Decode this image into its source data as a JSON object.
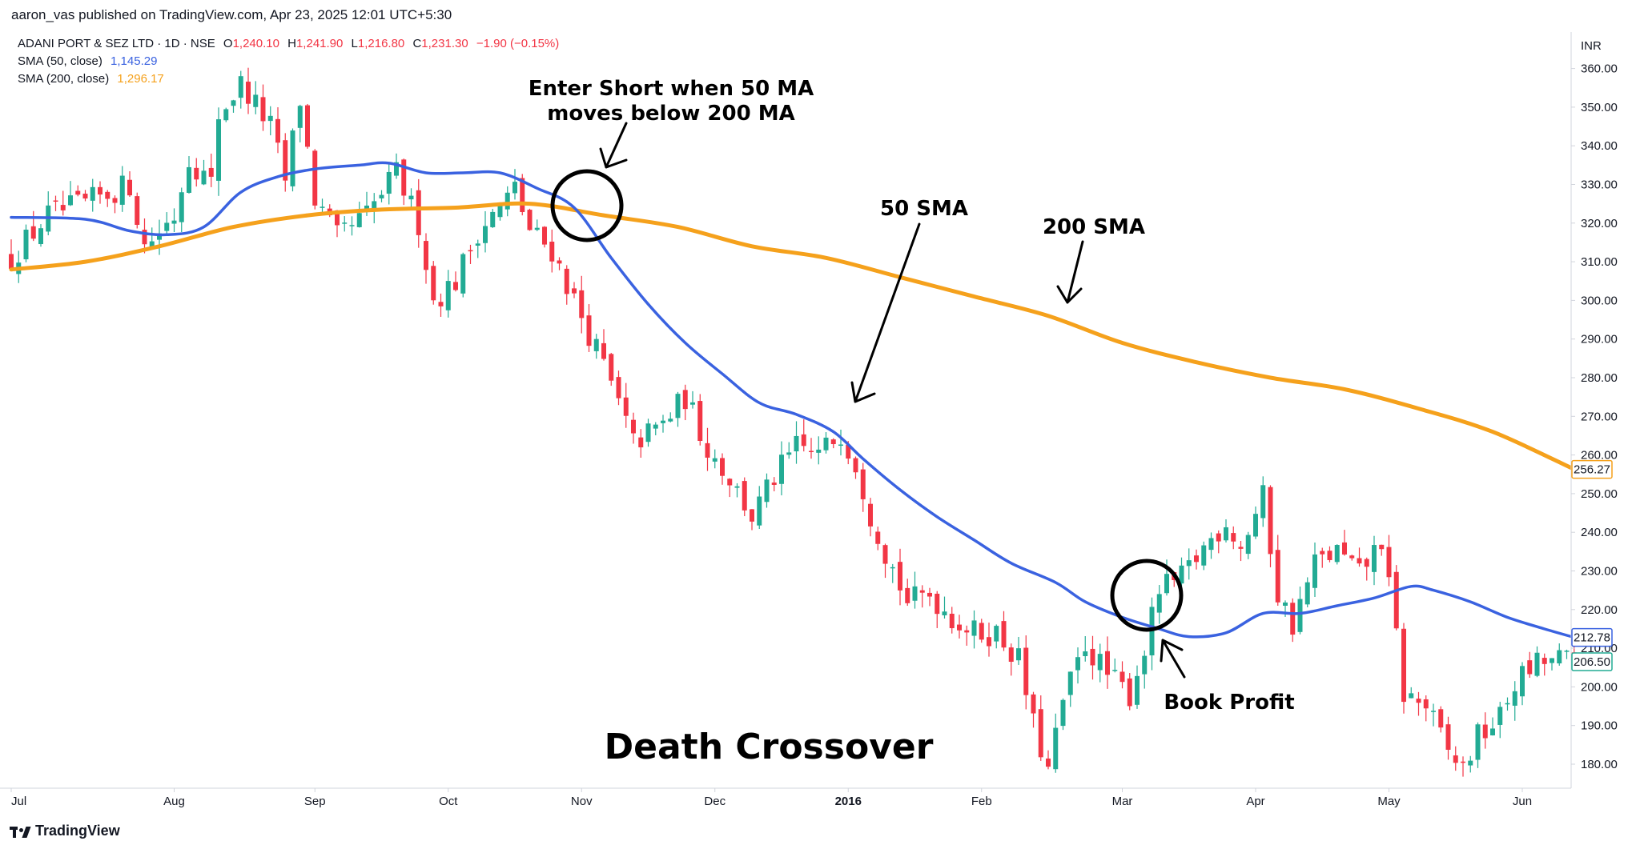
{
  "header": {
    "published": "aaron_vas published on TradingView.com, Apr 23, 2025 12:01 UTC+5:30",
    "symbol": "ADANI PORT & SEZ LTD · 1D · NSE",
    "ohlc": {
      "o_label": "O",
      "o": "1,240.10",
      "h_label": "H",
      "h": "1,241.90",
      "l_label": "L",
      "l": "1,216.80",
      "c_label": "C",
      "c": "1,231.30",
      "chg": "−1.90 (−0.15%)"
    },
    "sma50": {
      "label": "SMA (50, close)",
      "value": "1,145.29",
      "color": "#3a62e0"
    },
    "sma200": {
      "label": "SMA (200, close)",
      "value": "1,296.17",
      "color": "#f5a11c"
    }
  },
  "footer": {
    "brand": "TradingView"
  },
  "colors": {
    "up": "#22ab94",
    "down": "#f23645",
    "sma50": "#3a62e0",
    "sma200": "#f5a11c",
    "axis": "#d1d4dc"
  },
  "chart_data": {
    "type": "candlestick",
    "currency": "INR",
    "ylim": [
      174,
      367
    ],
    "y_ticks": [
      180,
      190,
      200,
      210,
      220,
      230,
      240,
      250,
      260,
      270,
      280,
      290,
      300,
      310,
      320,
      330,
      340,
      350,
      360
    ],
    "x_tick_labels": [
      "Jul",
      "Aug",
      "Sep",
      "Oct",
      "Nov",
      "Dec",
      "2016",
      "Feb",
      "Mar",
      "Apr",
      "May",
      "Jun"
    ],
    "x_tick_positions": [
      0,
      22,
      41,
      59,
      77,
      95,
      113,
      131,
      150,
      168,
      186,
      204
    ],
    "bar_count": 212,
    "price_labels": {
      "sma200": {
        "text": "256.27",
        "value": 256.27
      },
      "sma50": {
        "text": "212.78",
        "value": 212.78
      },
      "last": {
        "text": "206.50",
        "value": 206.5
      }
    },
    "close_path": [
      [
        0,
        311
      ],
      [
        5,
        322
      ],
      [
        10,
        325
      ],
      [
        16,
        330
      ],
      [
        18,
        314
      ],
      [
        22,
        322
      ],
      [
        24,
        337
      ],
      [
        27,
        330
      ],
      [
        28,
        348
      ],
      [
        31,
        356
      ],
      [
        35,
        345
      ],
      [
        37,
        331
      ],
      [
        39,
        352
      ],
      [
        41,
        326
      ],
      [
        44,
        316
      ],
      [
        48,
        322
      ],
      [
        52,
        333
      ],
      [
        55,
        320
      ],
      [
        57,
        300
      ],
      [
        60,
        305
      ],
      [
        63,
        318
      ],
      [
        66,
        324
      ],
      [
        68,
        329
      ],
      [
        70,
        318
      ],
      [
        73,
        313
      ],
      [
        76,
        300
      ],
      [
        80,
        283
      ],
      [
        84,
        263
      ],
      [
        88,
        268
      ],
      [
        91,
        275
      ],
      [
        94,
        262
      ],
      [
        97,
        254
      ],
      [
        100,
        244
      ],
      [
        103,
        254
      ],
      [
        106,
        262
      ],
      [
        109,
        260
      ],
      [
        112,
        266
      ],
      [
        114,
        258
      ],
      [
        116,
        245
      ],
      [
        118,
        235
      ],
      [
        121,
        222
      ],
      [
        124,
        224
      ],
      [
        127,
        218
      ],
      [
        130,
        214
      ],
      [
        133,
        214
      ],
      [
        136,
        207
      ],
      [
        138,
        190
      ],
      [
        140,
        178
      ],
      [
        142,
        196
      ],
      [
        145,
        211
      ],
      [
        148,
        203
      ],
      [
        151,
        198
      ],
      [
        153,
        210
      ],
      [
        155,
        225
      ],
      [
        158,
        228
      ],
      [
        161,
        236
      ],
      [
        164,
        243
      ],
      [
        166,
        236
      ],
      [
        169,
        249
      ],
      [
        171,
        224
      ],
      [
        173,
        216
      ],
      [
        176,
        232
      ],
      [
        179,
        235
      ],
      [
        182,
        229
      ],
      [
        185,
        238
      ],
      [
        187,
        213
      ],
      [
        188,
        198
      ],
      [
        191,
        195
      ],
      [
        194,
        183
      ],
      [
        196,
        179
      ],
      [
        198,
        187
      ],
      [
        201,
        192
      ],
      [
        203,
        201
      ],
      [
        206,
        206
      ],
      [
        209,
        207
      ],
      [
        211,
        206.5
      ]
    ],
    "series": [
      {
        "name": "SMA (50, close)",
        "points": [
          [
            0,
            321.5
          ],
          [
            10,
            321
          ],
          [
            16,
            318
          ],
          [
            21,
            317
          ],
          [
            26,
            319
          ],
          [
            31,
            328
          ],
          [
            36,
            332
          ],
          [
            41,
            334
          ],
          [
            47,
            335
          ],
          [
            51,
            335.5
          ],
          [
            56,
            333
          ],
          [
            61,
            333
          ],
          [
            66,
            333
          ],
          [
            71,
            329
          ],
          [
            76,
            324
          ],
          [
            81,
            311
          ],
          [
            86,
            299
          ],
          [
            91,
            289
          ],
          [
            96,
            281
          ],
          [
            101,
            273.5
          ],
          [
            106,
            270.5
          ],
          [
            111,
            266
          ],
          [
            115,
            259
          ],
          [
            120,
            251
          ],
          [
            125,
            244
          ],
          [
            130,
            238
          ],
          [
            135,
            232
          ],
          [
            141,
            227
          ],
          [
            145,
            222
          ],
          [
            150,
            218
          ],
          [
            155,
            215
          ],
          [
            159,
            213
          ],
          [
            164,
            214
          ],
          [
            169,
            219
          ],
          [
            174,
            219
          ],
          [
            179,
            221
          ],
          [
            184,
            223
          ],
          [
            189,
            226
          ],
          [
            192,
            225
          ],
          [
            197,
            222
          ],
          [
            202,
            218
          ],
          [
            207,
            215
          ],
          [
            211,
            212.8
          ]
        ]
      },
      {
        "name": "SMA (200, close)",
        "points": [
          [
            0,
            308
          ],
          [
            10,
            310
          ],
          [
            20,
            314
          ],
          [
            30,
            319
          ],
          [
            40,
            322
          ],
          [
            50,
            323.5
          ],
          [
            60,
            324
          ],
          [
            70,
            325
          ],
          [
            80,
            322
          ],
          [
            90,
            319
          ],
          [
            100,
            314
          ],
          [
            110,
            311
          ],
          [
            120,
            306
          ],
          [
            130,
            301
          ],
          [
            140,
            296
          ],
          [
            150,
            289
          ],
          [
            160,
            284
          ],
          [
            170,
            280
          ],
          [
            180,
            277
          ],
          [
            190,
            272
          ],
          [
            200,
            266
          ],
          [
            211,
            256.3
          ]
        ]
      }
    ],
    "annotations": {
      "enter_short": [
        "Enter Short when 50 MA",
        "moves below 200 MA"
      ],
      "sma50_label": "50 SMA",
      "sma200_label": "200 SMA",
      "book_profit": "Book Profit",
      "title": "Death Crossover"
    }
  }
}
